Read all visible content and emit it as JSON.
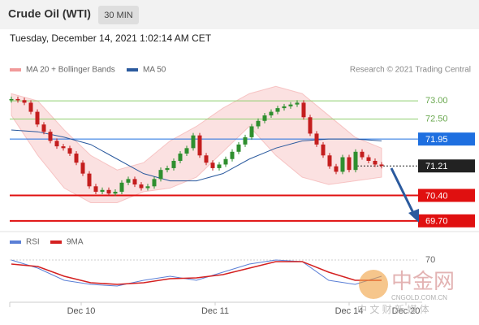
{
  "chart_data": {
    "type": "candlestick",
    "title": "Crude Oil (WTI)",
    "timeframe": "30 MIN",
    "subtitle": "Tuesday, December 14, 2021 1:02:14 AM CET",
    "legend": [
      "MA 20 + Bollinger Bands",
      "MA 50"
    ],
    "credit": "Research © 2021 Trading Central",
    "ylim": [
      69.45,
      73.54
    ],
    "closes": [
      73.05,
      73.02,
      72.95,
      72.7,
      72.35,
      72.15,
      71.9,
      71.75,
      71.7,
      71.55,
      71.3,
      71.0,
      70.65,
      70.5,
      70.55,
      70.45,
      70.5,
      70.75,
      70.85,
      70.7,
      70.6,
      70.65,
      70.85,
      71.1,
      71.15,
      71.35,
      71.55,
      71.7,
      72.05,
      71.5,
      71.3,
      71.15,
      71.25,
      71.4,
      71.6,
      71.8,
      72.0,
      72.3,
      72.45,
      72.6,
      72.7,
      72.8,
      72.85,
      72.9,
      72.95,
      72.55,
      72.1,
      71.8,
      71.5,
      71.2,
      71.05,
      71.45,
      71.1,
      71.6,
      71.45,
      71.35,
      71.25,
      71.21
    ],
    "up_color": "#2f8f2f",
    "down_color": "#c41e1e",
    "band_upper": [
      73.2,
      73.0,
      72.2,
      71.5,
      71.1,
      71.3,
      71.9,
      72.3,
      72.8,
      73.2,
      73.4,
      73.2,
      72.6,
      72.0,
      71.7
    ],
    "band_lower": [
      72.6,
      71.5,
      70.6,
      70.2,
      70.2,
      70.5,
      70.6,
      70.9,
      71.6,
      72.3,
      71.5,
      70.9,
      70.7,
      70.8,
      70.9
    ],
    "band_color": "#f19a9a",
    "ma50": [
      72.2,
      72.15,
      72.0,
      71.8,
      71.4,
      71.0,
      70.8,
      70.8,
      71.0,
      71.4,
      71.7,
      71.9,
      71.95,
      71.95,
      71.9
    ],
    "ma50_color": "#2b5a9e",
    "levels": [
      {
        "value": 73,
        "label": "73.00",
        "color": "#8fcf6f",
        "style": "text"
      },
      {
        "value": 72.5,
        "label": "72.50",
        "color": "#8fcf6f",
        "style": "text"
      },
      {
        "value": 71.95,
        "label": "71.95",
        "color": "#1e6fe0",
        "style": "box"
      },
      {
        "value": 71.21,
        "label": "71.21",
        "color": "#222222",
        "style": "box"
      },
      {
        "value": 70.4,
        "label": "70.40",
        "color": "#e01010",
        "style": "box"
      },
      {
        "value": 69.7,
        "label": "69.70",
        "color": "#e01010",
        "style": "box"
      }
    ],
    "rsi": {
      "legend": [
        "RSI",
        "9MA"
      ],
      "ylim": [
        20,
        80
      ],
      "yticks": [
        70
      ],
      "series": [
        {
          "name": "RSI",
          "color": "#5a7fd6",
          "values": [
            70,
            60,
            45,
            40,
            38,
            45,
            50,
            45,
            55,
            65,
            70,
            68,
            45,
            40,
            50
          ]
        },
        {
          "name": "9MA",
          "color": "#d42020",
          "values": [
            65,
            62,
            50,
            42,
            40,
            42,
            47,
            48,
            52,
            60,
            68,
            68,
            55,
            45,
            45
          ]
        }
      ]
    },
    "x_labels": [
      "Dec 10",
      "Dec 11",
      "Dec 14",
      "Dec 20"
    ],
    "watermark": [
      "中金网",
      "CNGOLD.COM.CN",
      "中 文 财 新 媒 体"
    ]
  }
}
